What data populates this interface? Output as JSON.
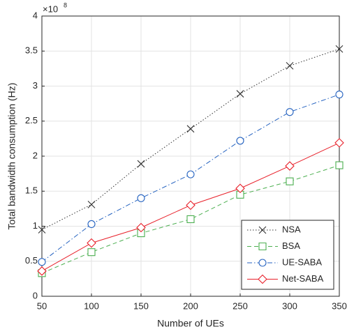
{
  "chart_data": {
    "type": "line",
    "x_label": "Number of UEs",
    "y_label": "Total bandwidth consumption (Hz)",
    "y_multiplier": "×10",
    "y_multiplier_exponent": "8",
    "x": [
      50,
      100,
      150,
      200,
      250,
      300,
      350
    ],
    "series": [
      {
        "name": "NSA",
        "color": "#333333",
        "line_style": "dotted",
        "marker": "x",
        "values": [
          0.95,
          1.31,
          1.89,
          2.39,
          2.89,
          3.29,
          3.53
        ]
      },
      {
        "name": "BSA",
        "color": "#4caf50",
        "line_style": "dashed",
        "marker": "square",
        "values": [
          0.33,
          0.63,
          0.9,
          1.1,
          1.45,
          1.64,
          1.87
        ]
      },
      {
        "name": "UE-SABA",
        "color": "#2462c0",
        "line_style": "dashdot",
        "marker": "circle",
        "values": [
          0.49,
          1.03,
          1.4,
          1.74,
          2.22,
          2.63,
          2.88
        ]
      },
      {
        "name": "Net-SABA",
        "color": "#e8202a",
        "line_style": "solid",
        "marker": "diamond",
        "values": [
          0.36,
          0.76,
          0.98,
          1.3,
          1.54,
          1.86,
          2.19
        ]
      }
    ],
    "xlim": [
      50,
      350
    ],
    "xticks": [
      50,
      100,
      150,
      200,
      250,
      300,
      350
    ],
    "ylim": [
      0,
      4
    ],
    "yticks": [
      0,
      0.5,
      1,
      1.5,
      2,
      2.5,
      3,
      3.5,
      4
    ],
    "grid": true,
    "legend_position": "southeast"
  }
}
